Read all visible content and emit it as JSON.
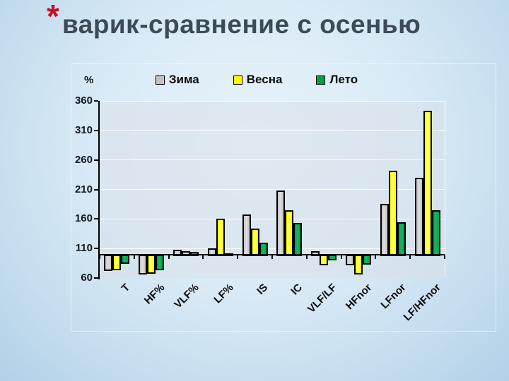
{
  "slide": {
    "title": "варик-сравнение с осенью",
    "title_marker": "*"
  },
  "chart_data": {
    "type": "bar",
    "title": "варик-сравнение с осенью",
    "ylabel": "%",
    "xlabel": "",
    "grid": true,
    "legend_position": "top",
    "axis": {
      "min": 60,
      "max": 360,
      "step": 50,
      "baseline": 100
    },
    "categories": [
      "T",
      "HF%",
      "VLF%",
      "LF%",
      "IS",
      "IC",
      "VLF/LF",
      "HFnor",
      "LFnor",
      "LF/HFnor"
    ],
    "series": [
      {
        "name": "Зима",
        "color": "#c2c2c2",
        "highlight": "#dedede",
        "values": [
          74,
          68,
          108,
          110,
          168,
          208,
          106,
          84,
          185,
          230
        ]
      },
      {
        "name": "Весна",
        "color": "#ffff00",
        "highlight": "#ffff66",
        "values": [
          76,
          70,
          106,
          160,
          144,
          175,
          84,
          68,
          242,
          343
        ]
      },
      {
        "name": "Лето",
        "color": "#00a04c",
        "highlight": "#1ab562",
        "values": [
          86,
          76,
          104,
          102,
          120,
          153,
          92,
          85,
          154,
          175
        ]
      }
    ],
    "colors": {
      "title_text": "#3d4b57",
      "title_marker": "#c01325",
      "background": "#cfe3f2"
    }
  }
}
